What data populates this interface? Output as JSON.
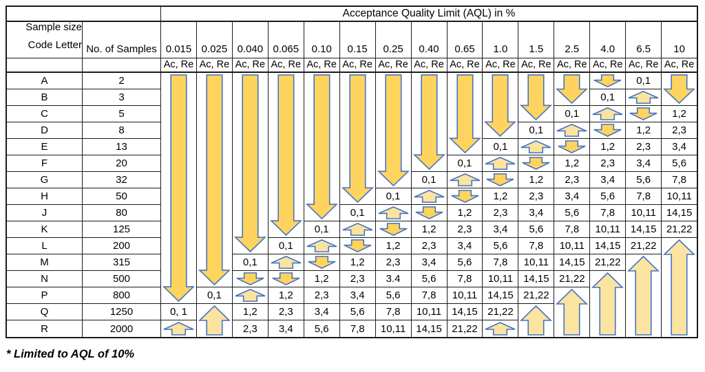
{
  "title": "Acceptance Quality Limit (AQL) in %",
  "left_header": {
    "line1": "Sample size",
    "line2": "Code Letter",
    "samples": "No. of Samples"
  },
  "subheader_label": "Ac, Re",
  "footnote": "* Limited to AQL of 10%",
  "rows": [
    {
      "code": "A",
      "samples": "2"
    },
    {
      "code": "B",
      "samples": "3"
    },
    {
      "code": "C",
      "samples": "5"
    },
    {
      "code": "D",
      "samples": "8"
    },
    {
      "code": "E",
      "samples": "13"
    },
    {
      "code": "F",
      "samples": "20"
    },
    {
      "code": "G",
      "samples": "32"
    },
    {
      "code": "H",
      "samples": "50"
    },
    {
      "code": "J",
      "samples": "80"
    },
    {
      "code": "K",
      "samples": "125"
    },
    {
      "code": "L",
      "samples": "200"
    },
    {
      "code": "M",
      "samples": "315"
    },
    {
      "code": "N",
      "samples": "500"
    },
    {
      "code": "P",
      "samples": "800"
    },
    {
      "code": "Q",
      "samples": "1250"
    },
    {
      "code": "R",
      "samples": "2000"
    }
  ],
  "columns": [
    {
      "aql": "0.015",
      "segments": [
        {
          "arrow": "down",
          "rows": 14
        },
        {
          "value": "0, 1"
        },
        {
          "arrow": "up-small",
          "rows": 1
        }
      ]
    },
    {
      "aql": "0.025",
      "segments": [
        {
          "arrow": "down",
          "rows": 13
        },
        {
          "value": "0,1"
        },
        {
          "arrow": "up",
          "rows": 2
        }
      ]
    },
    {
      "aql": "0.040",
      "segments": [
        {
          "arrow": "down",
          "rows": 11
        },
        {
          "value": "0,1"
        },
        {
          "arrow": "down-small",
          "rows": 1
        },
        {
          "arrow": "up-small",
          "rows": 1
        },
        {
          "value": "1,2"
        },
        {
          "value": "2,3"
        }
      ]
    },
    {
      "aql": "0.065",
      "segments": [
        {
          "arrow": "down",
          "rows": 10
        },
        {
          "value": "0,1"
        },
        {
          "arrow": "up-small",
          "rows": 1
        },
        {
          "arrow": "down-small",
          "rows": 1
        },
        {
          "value": "1,2"
        },
        {
          "value": "2,3"
        },
        {
          "value": "3,4"
        }
      ]
    },
    {
      "aql": "0.10",
      "segments": [
        {
          "arrow": "down",
          "rows": 9
        },
        {
          "value": "0,1"
        },
        {
          "arrow": "up-small",
          "rows": 1
        },
        {
          "arrow": "down-small",
          "rows": 1
        },
        {
          "value": "1,2"
        },
        {
          "value": "2,3"
        },
        {
          "value": "3,4"
        },
        {
          "value": "5,6"
        }
      ]
    },
    {
      "aql": "0.15",
      "segments": [
        {
          "arrow": "down",
          "rows": 8
        },
        {
          "value": "0,1"
        },
        {
          "arrow": "up-small",
          "rows": 1
        },
        {
          "arrow": "down-small",
          "rows": 1
        },
        {
          "value": "1,2"
        },
        {
          "value": "2,3"
        },
        {
          "value": "3,4"
        },
        {
          "value": "5,6"
        },
        {
          "value": "7,8"
        }
      ]
    },
    {
      "aql": "0.25",
      "segments": [
        {
          "arrow": "down",
          "rows": 7
        },
        {
          "value": "0,1"
        },
        {
          "arrow": "up-small",
          "rows": 1
        },
        {
          "arrow": "down-small",
          "rows": 1
        },
        {
          "value": "1,2"
        },
        {
          "value": "2,3"
        },
        {
          "value": "3.4"
        },
        {
          "value": "5,6"
        },
        {
          "value": "7,8"
        },
        {
          "value": "10,11"
        }
      ]
    },
    {
      "aql": "0.40",
      "segments": [
        {
          "arrow": "down",
          "rows": 6
        },
        {
          "value": "0,1"
        },
        {
          "arrow": "up-small",
          "rows": 1
        },
        {
          "arrow": "down-small",
          "rows": 1
        },
        {
          "value": "1,2"
        },
        {
          "value": "2,3"
        },
        {
          "value": "3,4"
        },
        {
          "value": "5,6"
        },
        {
          "value": "7,8"
        },
        {
          "value": "10,11"
        },
        {
          "value": "14,15"
        }
      ]
    },
    {
      "aql": "0.65",
      "segments": [
        {
          "arrow": "down",
          "rows": 5
        },
        {
          "value": "0,1"
        },
        {
          "arrow": "up-small",
          "rows": 1
        },
        {
          "arrow": "down-small",
          "rows": 1
        },
        {
          "value": "1,2"
        },
        {
          "value": "2,3"
        },
        {
          "value": "3,4"
        },
        {
          "value": "5,6"
        },
        {
          "value": "7,8"
        },
        {
          "value": "10,11"
        },
        {
          "value": "14,15"
        },
        {
          "value": "21,22"
        }
      ]
    },
    {
      "aql": "1.0",
      "segments": [
        {
          "arrow": "down",
          "rows": 4
        },
        {
          "value": "0,1"
        },
        {
          "arrow": "up-small",
          "rows": 1
        },
        {
          "arrow": "down-small",
          "rows": 1
        },
        {
          "value": "1,2"
        },
        {
          "value": "2,3"
        },
        {
          "value": "3,4"
        },
        {
          "value": "5,6"
        },
        {
          "value": "7,8"
        },
        {
          "value": "10,11"
        },
        {
          "value": "14,15"
        },
        {
          "value": "21,22"
        },
        {
          "arrow": "up-small",
          "rows": 1
        }
      ]
    },
    {
      "aql": "1.5",
      "segments": [
        {
          "arrow": "down",
          "rows": 3
        },
        {
          "value": "0,1"
        },
        {
          "arrow": "up-small",
          "rows": 1
        },
        {
          "arrow": "down-small",
          "rows": 1
        },
        {
          "value": "1,2"
        },
        {
          "value": "2,3"
        },
        {
          "value": "3,4"
        },
        {
          "value": "5,6"
        },
        {
          "value": "7,8"
        },
        {
          "value": "10,11"
        },
        {
          "value": "14,15"
        },
        {
          "value": "21,22"
        },
        {
          "arrow": "up",
          "rows": 2
        }
      ]
    },
    {
      "aql": "2.5",
      "segments": [
        {
          "arrow": "down",
          "rows": 2
        },
        {
          "value": "0,1"
        },
        {
          "arrow": "up-small",
          "rows": 1
        },
        {
          "arrow": "down-small",
          "rows": 1
        },
        {
          "value": "1,2"
        },
        {
          "value": "2,3"
        },
        {
          "value": "3,4"
        },
        {
          "value": "5,6"
        },
        {
          "value": "7,8"
        },
        {
          "value": "10,11"
        },
        {
          "value": "14,15"
        },
        {
          "value": "21,22"
        },
        {
          "arrow": "up",
          "rows": 3
        }
      ]
    },
    {
      "aql": "4.0",
      "segments": [
        {
          "arrow": "down-small",
          "rows": 1
        },
        {
          "value": "0,1"
        },
        {
          "arrow": "up-small",
          "rows": 1
        },
        {
          "arrow": "down-small",
          "rows": 1
        },
        {
          "value": "1,2"
        },
        {
          "value": "2,3"
        },
        {
          "value": "3,4"
        },
        {
          "value": "5,6"
        },
        {
          "value": "7,8"
        },
        {
          "value": "10,11"
        },
        {
          "value": "14,15"
        },
        {
          "value": "21,22"
        },
        {
          "arrow": "up",
          "rows": 4
        }
      ]
    },
    {
      "aql": "6.5",
      "segments": [
        {
          "value": "0,1"
        },
        {
          "arrow": "up-small",
          "rows": 1
        },
        {
          "arrow": "down-small",
          "rows": 1
        },
        {
          "value": "1,2"
        },
        {
          "value": "2,3"
        },
        {
          "value": "3,4"
        },
        {
          "value": "5,6"
        },
        {
          "value": "7,8"
        },
        {
          "value": "10,11"
        },
        {
          "value": "14,15"
        },
        {
          "value": "21,22"
        },
        {
          "arrow": "up",
          "rows": 5
        }
      ]
    },
    {
      "aql": "10",
      "segments": [
        {
          "arrow": "down",
          "rows": 2
        },
        {
          "value": "1,2"
        },
        {
          "value": "2,3"
        },
        {
          "value": "3,4"
        },
        {
          "value": "5,6"
        },
        {
          "value": "7,8"
        },
        {
          "value": "10,11"
        },
        {
          "value": "14,15"
        },
        {
          "value": "21,22"
        },
        {
          "arrow": "up",
          "rows": 6
        }
      ]
    }
  ],
  "colors": {
    "arrow_down_fill": "#ffd45e",
    "arrow_up_fill": "#fbe4a0",
    "arrow_stroke": "#4472c4",
    "grid_border": "#1a1a1a"
  }
}
